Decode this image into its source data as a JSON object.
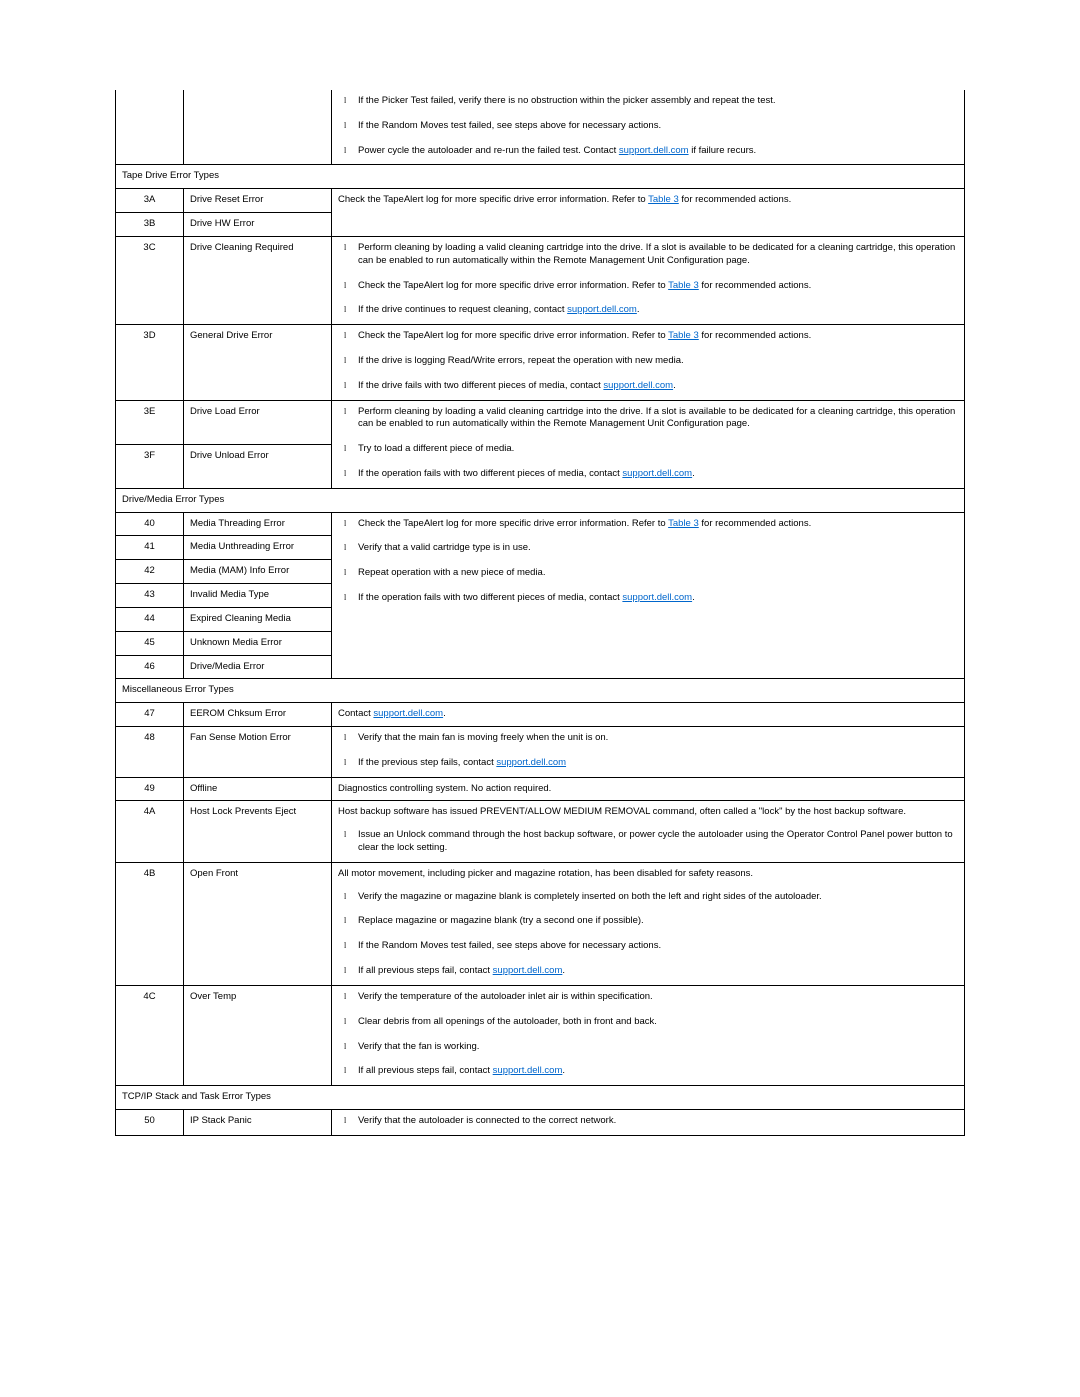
{
  "links": {
    "support": "support.dell.com",
    "table3": "Table 3"
  },
  "topActions": [
    "If the Picker Test failed, verify there is no obstruction within the picker assembly and repeat the test.",
    "If the Random Moves test failed, see steps above for necessary actions.",
    "Power cycle the autoloader and re-run the failed test. Contact {support} if failure recurs."
  ],
  "sections": [
    {
      "title": "Tape Drive Error Types",
      "rows": [
        {
          "code": "3A",
          "name": "Drive Reset Error",
          "action_text": "Check the TapeAlert log for more specific drive error information. Refer to {table3} for recommended actions.",
          "rowspan": 2
        },
        {
          "code": "3B",
          "name": "Drive HW Error",
          "merged": true
        },
        {
          "code": "3C",
          "name": "Drive Cleaning Required",
          "action_list": [
            "Perform cleaning by loading a valid cleaning cartridge into the drive. If a slot is available to be dedicated for a cleaning cartridge, this operation can be enabled to run automatically within the Remote Management Unit Configuration page.",
            "Check the TapeAlert log for more specific drive error information. Refer to {table3} for recommended actions.",
            "If the drive continues to request cleaning, contact {support}."
          ]
        },
        {
          "code": "3D",
          "name": "General Drive Error",
          "action_list": [
            "Check the TapeAlert log for more specific drive error information. Refer to {table3} for recommended actions.",
            "If the drive is logging Read/Write errors, repeat the operation with new media.",
            "If the drive fails with two different pieces of media, contact {support}."
          ]
        },
        {
          "code": "3E",
          "name": "Drive Load Error",
          "rowspan": 2,
          "action_list": [
            "Perform cleaning by loading a valid cleaning cartridge into the drive. If a slot is available to be dedicated for a cleaning cartridge, this operation can be enabled to run automatically within the Remote Management Unit Configuration page.",
            "Try to load a different piece of media.",
            "If the operation fails with two different pieces of media, contact {support}."
          ]
        },
        {
          "code": "3F",
          "name": "Drive Unload Error",
          "merged": true
        }
      ]
    },
    {
      "title": "Drive/Media Error Types",
      "rows": [
        {
          "code": "40",
          "name": "Media Threading Error",
          "rowspan": 7,
          "action_list": [
            "Check the TapeAlert log for more specific drive error information. Refer to {table3} for recommended actions.",
            "Verify that a valid cartridge type is in use.",
            "Repeat operation with a new piece of media.",
            "If the operation fails with two different pieces of media, contact {support}."
          ]
        },
        {
          "code": "41",
          "name": "Media Unthreading Error",
          "merged": true
        },
        {
          "code": "42",
          "name": "Media (MAM) Info Error",
          "merged": true
        },
        {
          "code": "43",
          "name": "Invalid Media Type",
          "merged": true
        },
        {
          "code": "44",
          "name": "Expired Cleaning Media",
          "merged": true
        },
        {
          "code": "45",
          "name": "Unknown Media Error",
          "merged": true
        },
        {
          "code": "46",
          "name": "Drive/Media Error",
          "merged": true
        }
      ]
    },
    {
      "title": "Miscellaneous Error Types",
      "rows": [
        {
          "code": "47",
          "name": "EEROM Chksum Error",
          "action_text": "Contact {support}."
        },
        {
          "code": "48",
          "name": "Fan Sense Motion Error",
          "action_list": [
            "Verify that the main fan is moving freely when the unit is on.",
            "If the previous step fails, contact {support}"
          ]
        },
        {
          "code": "49",
          "name": "Offline",
          "action_text": "Diagnostics controlling system. No action required."
        },
        {
          "code": "4A",
          "name": "Host Lock Prevents Eject",
          "action_pre": "Host backup software has issued PREVENT/ALLOW MEDIUM REMOVAL command, often called a \"lock\" by the host backup software.",
          "action_list": [
            "Issue an Unlock command through the host backup software, or power cycle the autoloader using the Operator Control Panel power button to clear the lock setting."
          ]
        },
        {
          "code": "4B",
          "name": "Open Front",
          "action_pre": "All motor movement, including picker and magazine rotation, has been disabled for safety reasons.",
          "action_list": [
            "Verify the magazine or magazine blank is completely inserted on both the left and right sides of the autoloader.",
            "Replace magazine or magazine blank (try a second one if possible).",
            "If the Random Moves test failed, see steps above for necessary actions.",
            "If all previous steps fail, contact {support}."
          ]
        },
        {
          "code": "4C",
          "name": "Over Temp",
          "action_list": [
            "Verify the temperature of the autoloader inlet air is within specification.",
            "Clear debris from all openings of the autoloader, both in front and back.",
            "Verify that the fan is working.",
            "If all previous steps fail, contact {support}."
          ]
        }
      ]
    },
    {
      "title": "TCP/IP Stack and Task Error Types",
      "rows": [
        {
          "code": "50",
          "name": "IP Stack Panic",
          "action_list_open": true,
          "action_list": [
            "Verify that the autoloader is connected to the correct network."
          ]
        }
      ]
    }
  ]
}
